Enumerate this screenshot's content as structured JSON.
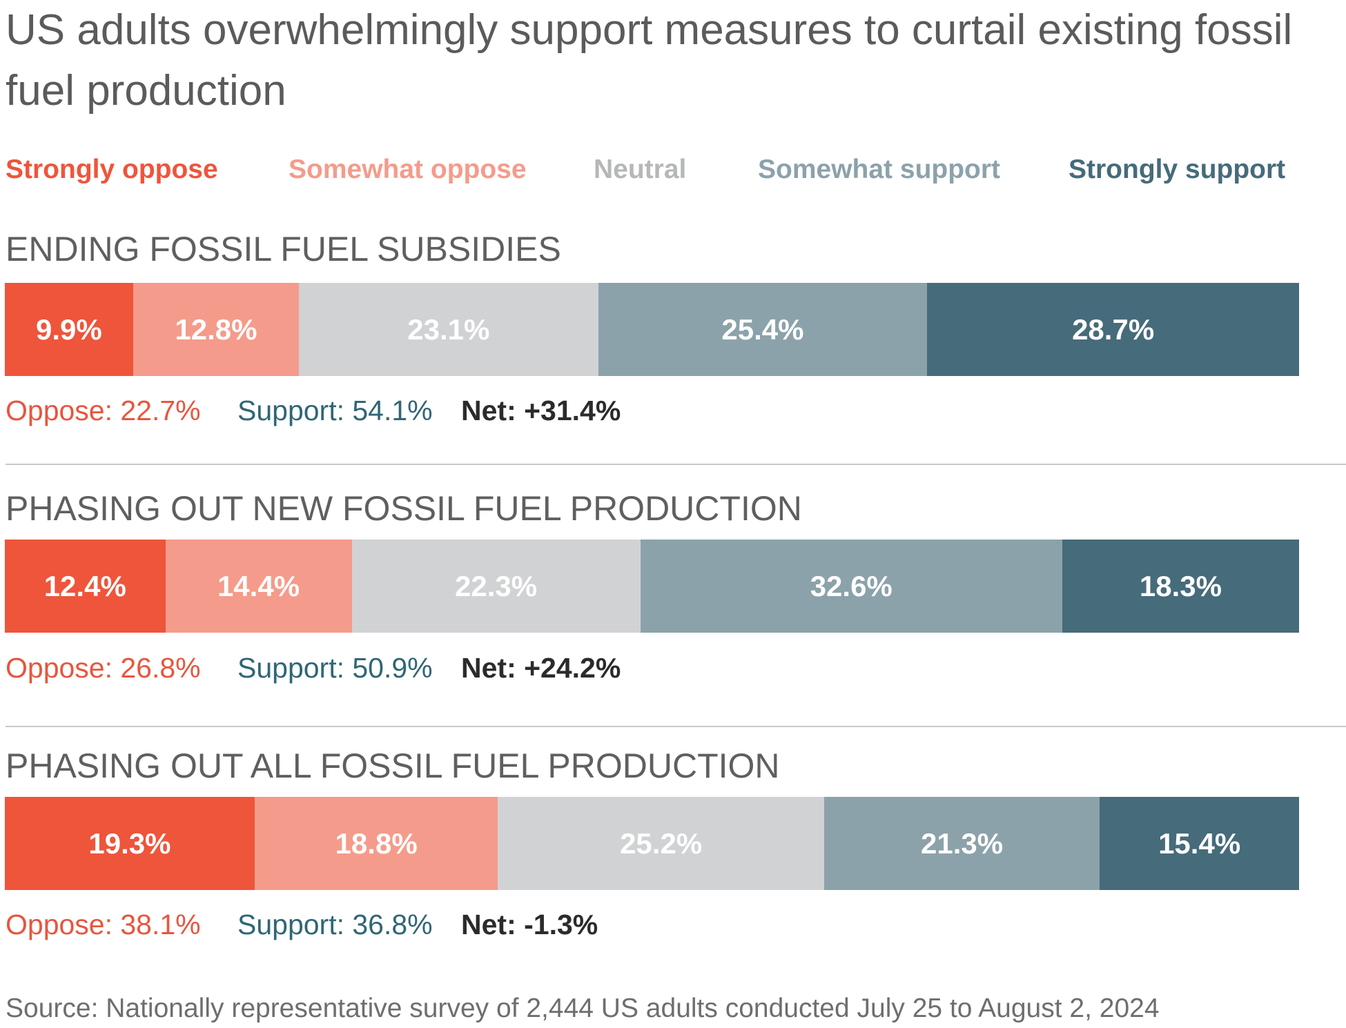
{
  "title": "US adults overwhelmingly support measures to curtail existing fossil fuel production",
  "legend": [
    {
      "label": "Strongly oppose",
      "color": "#ee553b"
    },
    {
      "label": "Somewhat oppose",
      "color": "#f59b8b"
    },
    {
      "label": "Neutral",
      "color": "#b5b7b8"
    },
    {
      "label": "Somewhat support",
      "color": "#8ca2aa"
    },
    {
      "label": "Strongly support",
      "color": "#466b7a"
    }
  ],
  "chart_data": {
    "type": "bar",
    "stacked": true,
    "orientation": "horizontal",
    "normalized_to": 100,
    "categories": [
      "Strongly oppose",
      "Somewhat oppose",
      "Neutral",
      "Somewhat support",
      "Strongly support"
    ],
    "colors": [
      "#ee553b",
      "#f59b8b",
      "#d1d2d4",
      "#8ca2aa",
      "#466b7a"
    ],
    "series": [
      {
        "name": "ENDING FOSSIL FUEL SUBSIDIES",
        "values": [
          9.9,
          12.8,
          23.1,
          25.4,
          28.7
        ],
        "labels": [
          "9.9%",
          "12.8%",
          "23.1%",
          "25.4%",
          "28.7%"
        ],
        "summary": {
          "oppose": "Oppose: 22.7%",
          "support": "Support: 54.1%",
          "net": "Net: +31.4%"
        }
      },
      {
        "name": "PHASING OUT NEW FOSSIL FUEL PRODUCTION",
        "values": [
          12.4,
          14.4,
          22.3,
          32.6,
          18.3
        ],
        "labels": [
          "12.4%",
          "14.4%",
          "22.3%",
          "32.6%",
          "18.3%"
        ],
        "summary": {
          "oppose": "Oppose: 26.8%",
          "support": "Support: 50.9%",
          "net": "Net: +24.2%"
        }
      },
      {
        "name": "PHASING OUT ALL FOSSIL FUEL PRODUCTION",
        "values": [
          19.3,
          18.8,
          25.2,
          21.3,
          15.4
        ],
        "labels": [
          "19.3%",
          "18.8%",
          "25.2%",
          "21.3%",
          "15.4%"
        ],
        "summary": {
          "oppose": "Oppose: 38.1%",
          "support": "Support: 36.8%",
          "net": "Net: -1.3%"
        }
      }
    ]
  },
  "source": "Source: Nationally representative survey of 2,444 US adults conducted July 25 to August 2, 2024"
}
